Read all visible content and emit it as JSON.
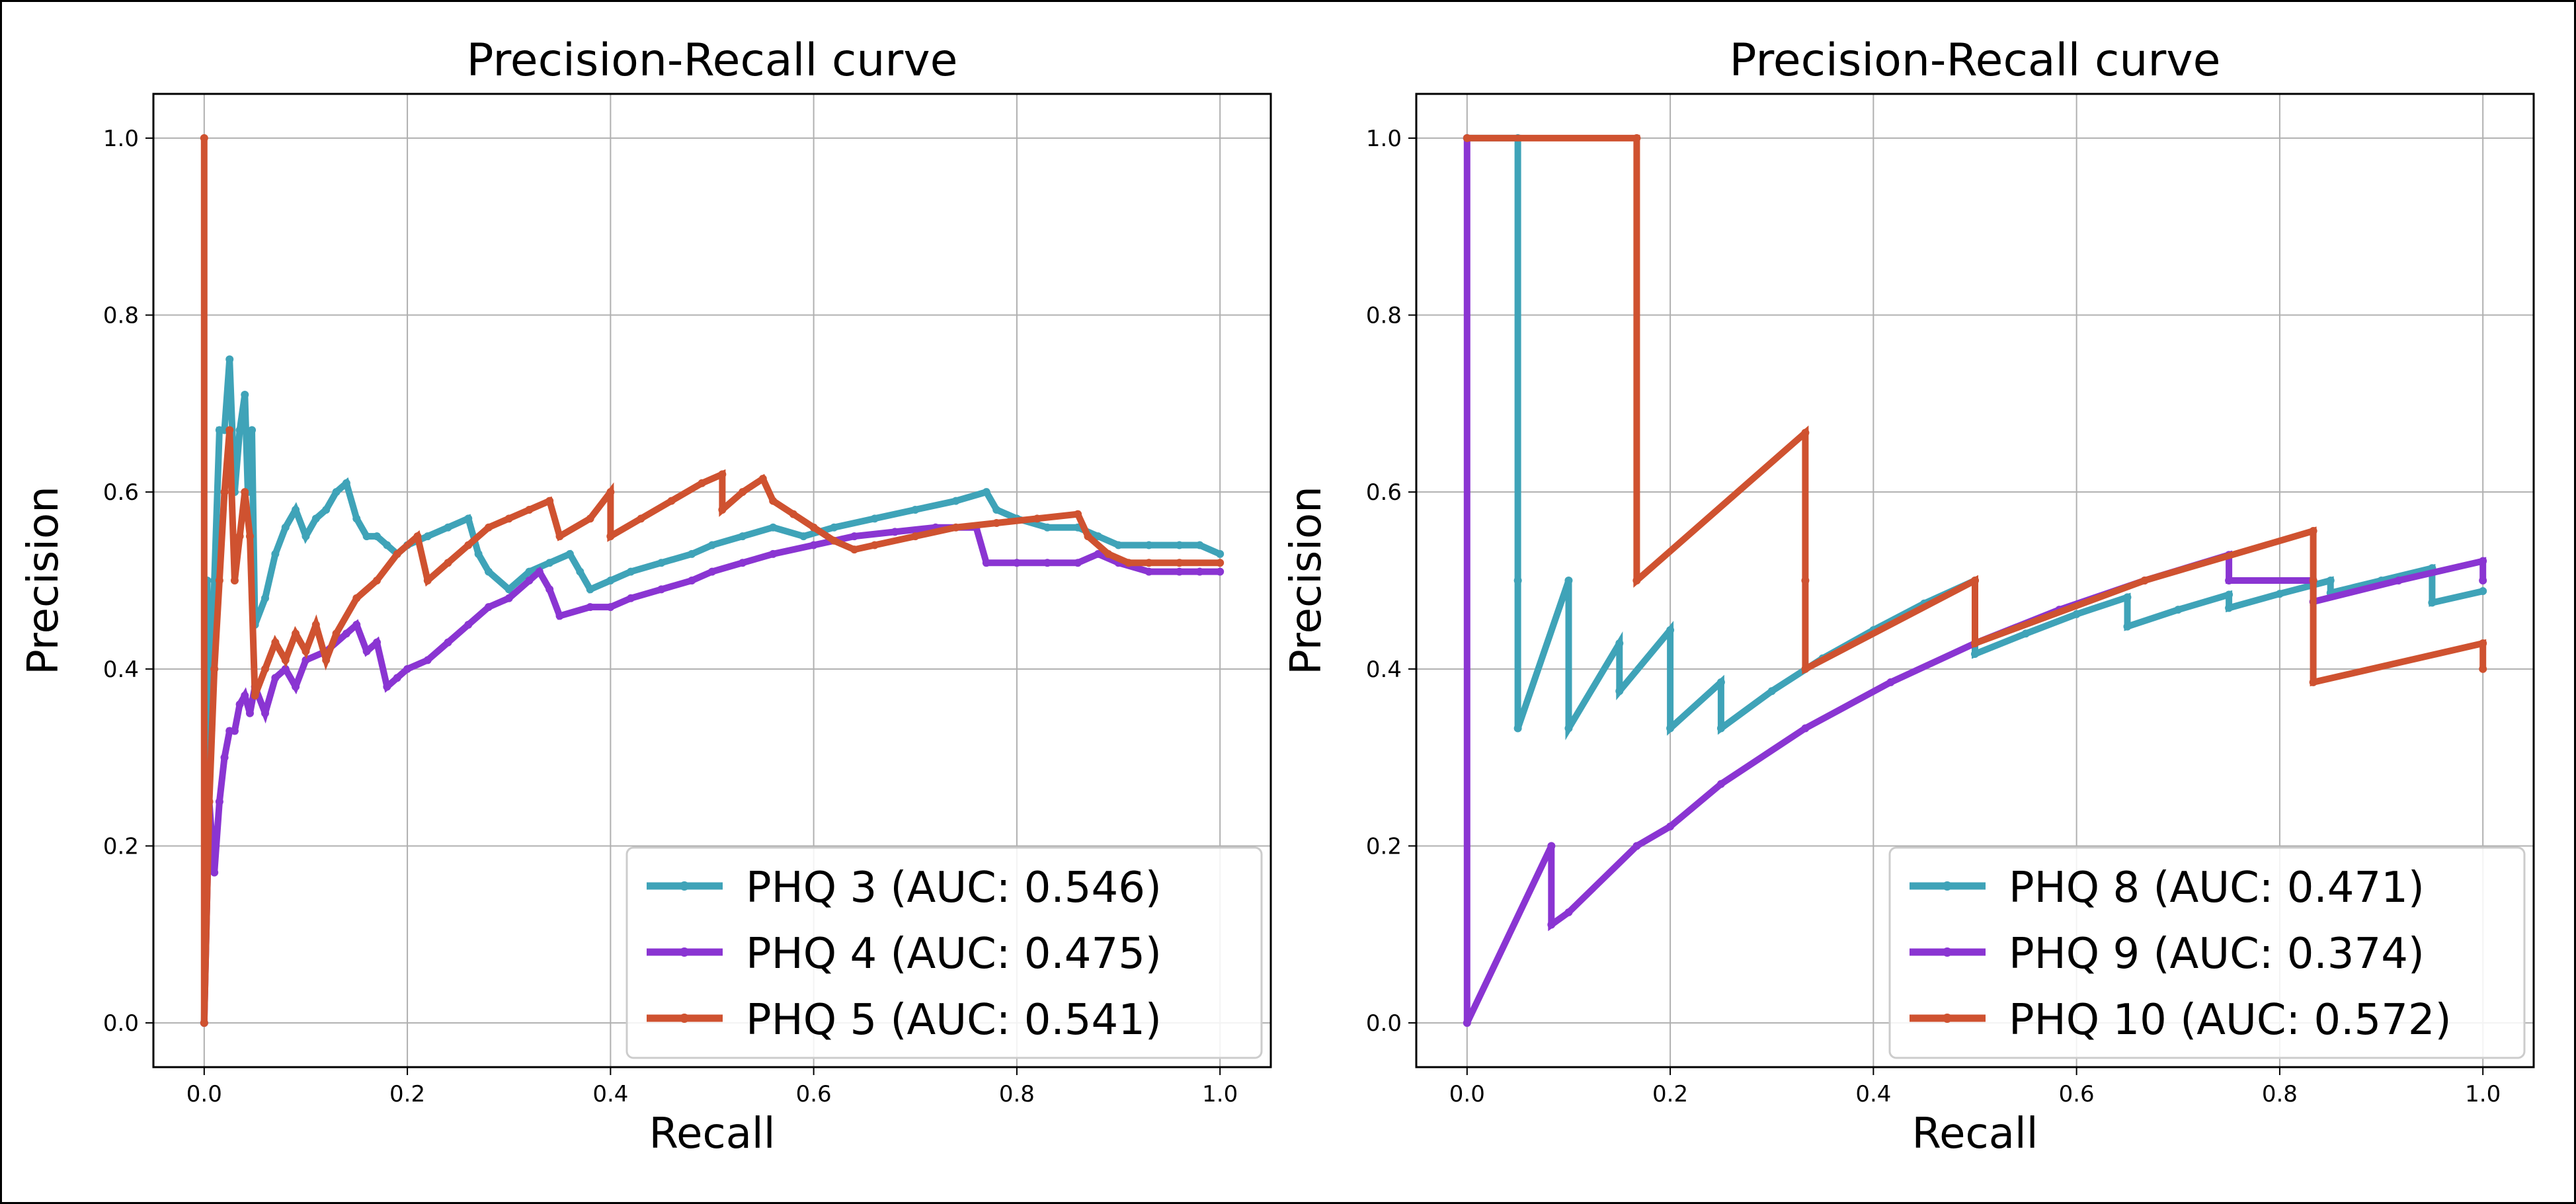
{
  "chart_data": [
    {
      "type": "line",
      "title": "Precision-Recall curve",
      "xlabel": "Recall",
      "ylabel": "Precision",
      "xlim": [
        -0.05,
        1.05
      ],
      "ylim": [
        -0.05,
        1.05
      ],
      "xticks": [
        "0.0",
        "0.2",
        "0.4",
        "0.6",
        "0.8",
        "1.0"
      ],
      "yticks": [
        "0.0",
        "0.2",
        "0.4",
        "0.6",
        "0.8",
        "1.0"
      ],
      "grid": true,
      "legend_position": "bottom-right",
      "series": [
        {
          "name": "PHQ 3 (AUC: 0.546)",
          "color": "#3fa3b8",
          "points": [
            [
              0.0,
              0.0
            ],
            [
              0.003,
              0.5
            ],
            [
              0.007,
              0.33
            ],
            [
              0.01,
              0.5
            ],
            [
              0.015,
              0.67
            ],
            [
              0.02,
              0.67
            ],
            [
              0.025,
              0.75
            ],
            [
              0.03,
              0.6
            ],
            [
              0.035,
              0.67
            ],
            [
              0.04,
              0.71
            ],
            [
              0.043,
              0.6
            ],
            [
              0.047,
              0.67
            ],
            [
              0.05,
              0.45
            ],
            [
              0.06,
              0.48
            ],
            [
              0.07,
              0.53
            ],
            [
              0.08,
              0.56
            ],
            [
              0.09,
              0.58
            ],
            [
              0.1,
              0.55
            ],
            [
              0.11,
              0.57
            ],
            [
              0.12,
              0.58
            ],
            [
              0.13,
              0.6
            ],
            [
              0.14,
              0.61
            ],
            [
              0.15,
              0.57
            ],
            [
              0.16,
              0.55
            ],
            [
              0.17,
              0.55
            ],
            [
              0.18,
              0.54
            ],
            [
              0.19,
              0.53
            ],
            [
              0.2,
              0.54
            ],
            [
              0.22,
              0.55
            ],
            [
              0.24,
              0.56
            ],
            [
              0.26,
              0.57
            ],
            [
              0.27,
              0.53
            ],
            [
              0.28,
              0.51
            ],
            [
              0.3,
              0.49
            ],
            [
              0.32,
              0.51
            ],
            [
              0.34,
              0.52
            ],
            [
              0.36,
              0.53
            ],
            [
              0.37,
              0.51
            ],
            [
              0.38,
              0.49
            ],
            [
              0.4,
              0.5
            ],
            [
              0.42,
              0.51
            ],
            [
              0.45,
              0.52
            ],
            [
              0.48,
              0.53
            ],
            [
              0.5,
              0.54
            ],
            [
              0.53,
              0.55
            ],
            [
              0.56,
              0.56
            ],
            [
              0.59,
              0.55
            ],
            [
              0.62,
              0.56
            ],
            [
              0.66,
              0.57
            ],
            [
              0.7,
              0.58
            ],
            [
              0.74,
              0.59
            ],
            [
              0.77,
              0.6
            ],
            [
              0.78,
              0.58
            ],
            [
              0.8,
              0.57
            ],
            [
              0.83,
              0.56
            ],
            [
              0.86,
              0.56
            ],
            [
              0.88,
              0.55
            ],
            [
              0.9,
              0.54
            ],
            [
              0.93,
              0.54
            ],
            [
              0.96,
              0.54
            ],
            [
              0.98,
              0.54
            ],
            [
              1.0,
              0.53
            ]
          ]
        },
        {
          "name": "PHQ 4 (AUC: 0.475)",
          "color": "#8a35d2",
          "points": [
            [
              0.0,
              0.0
            ],
            [
              0.005,
              0.25
            ],
            [
              0.01,
              0.17
            ],
            [
              0.015,
              0.25
            ],
            [
              0.02,
              0.3
            ],
            [
              0.025,
              0.33
            ],
            [
              0.03,
              0.33
            ],
            [
              0.035,
              0.36
            ],
            [
              0.04,
              0.37
            ],
            [
              0.045,
              0.35
            ],
            [
              0.05,
              0.38
            ],
            [
              0.06,
              0.35
            ],
            [
              0.07,
              0.39
            ],
            [
              0.08,
              0.4
            ],
            [
              0.09,
              0.38
            ],
            [
              0.1,
              0.41
            ],
            [
              0.12,
              0.42
            ],
            [
              0.14,
              0.44
            ],
            [
              0.15,
              0.45
            ],
            [
              0.16,
              0.42
            ],
            [
              0.17,
              0.43
            ],
            [
              0.18,
              0.38
            ],
            [
              0.19,
              0.39
            ],
            [
              0.2,
              0.4
            ],
            [
              0.22,
              0.41
            ],
            [
              0.24,
              0.43
            ],
            [
              0.26,
              0.45
            ],
            [
              0.28,
              0.47
            ],
            [
              0.3,
              0.48
            ],
            [
              0.32,
              0.5
            ],
            [
              0.33,
              0.51
            ],
            [
              0.34,
              0.49
            ],
            [
              0.35,
              0.46
            ],
            [
              0.38,
              0.47
            ],
            [
              0.4,
              0.47
            ],
            [
              0.42,
              0.48
            ],
            [
              0.45,
              0.49
            ],
            [
              0.48,
              0.5
            ],
            [
              0.5,
              0.51
            ],
            [
              0.53,
              0.52
            ],
            [
              0.56,
              0.53
            ],
            [
              0.6,
              0.54
            ],
            [
              0.64,
              0.55
            ],
            [
              0.68,
              0.555
            ],
            [
              0.72,
              0.56
            ],
            [
              0.76,
              0.56
            ],
            [
              0.77,
              0.52
            ],
            [
              0.8,
              0.52
            ],
            [
              0.83,
              0.52
            ],
            [
              0.86,
              0.52
            ],
            [
              0.88,
              0.53
            ],
            [
              0.9,
              0.52
            ],
            [
              0.93,
              0.51
            ],
            [
              0.96,
              0.51
            ],
            [
              0.98,
              0.51
            ],
            [
              1.0,
              0.51
            ]
          ]
        },
        {
          "name": "PHQ 5 (AUC: 0.541)",
          "color": "#cf5230",
          "points": [
            [
              0.0,
              1.0
            ],
            [
              0.0,
              0.0
            ],
            [
              0.005,
              0.25
            ],
            [
              0.01,
              0.4
            ],
            [
              0.015,
              0.5
            ],
            [
              0.02,
              0.6
            ],
            [
              0.025,
              0.67
            ],
            [
              0.03,
              0.5
            ],
            [
              0.035,
              0.55
            ],
            [
              0.04,
              0.6
            ],
            [
              0.045,
              0.55
            ],
            [
              0.05,
              0.37
            ],
            [
              0.06,
              0.4
            ],
            [
              0.07,
              0.43
            ],
            [
              0.08,
              0.41
            ],
            [
              0.09,
              0.44
            ],
            [
              0.1,
              0.42
            ],
            [
              0.11,
              0.45
            ],
            [
              0.12,
              0.41
            ],
            [
              0.13,
              0.44
            ],
            [
              0.15,
              0.48
            ],
            [
              0.17,
              0.5
            ],
            [
              0.19,
              0.53
            ],
            [
              0.21,
              0.55
            ],
            [
              0.22,
              0.5
            ],
            [
              0.24,
              0.52
            ],
            [
              0.26,
              0.54
            ],
            [
              0.28,
              0.56
            ],
            [
              0.3,
              0.57
            ],
            [
              0.32,
              0.58
            ],
            [
              0.34,
              0.59
            ],
            [
              0.35,
              0.55
            ],
            [
              0.38,
              0.57
            ],
            [
              0.4,
              0.6
            ],
            [
              0.4,
              0.55
            ],
            [
              0.43,
              0.57
            ],
            [
              0.46,
              0.59
            ],
            [
              0.49,
              0.61
            ],
            [
              0.51,
              0.62
            ],
            [
              0.51,
              0.58
            ],
            [
              0.53,
              0.6
            ],
            [
              0.55,
              0.615
            ],
            [
              0.56,
              0.59
            ],
            [
              0.58,
              0.575
            ],
            [
              0.6,
              0.56
            ],
            [
              0.62,
              0.545
            ],
            [
              0.64,
              0.535
            ],
            [
              0.66,
              0.54
            ],
            [
              0.7,
              0.55
            ],
            [
              0.74,
              0.56
            ],
            [
              0.78,
              0.565
            ],
            [
              0.82,
              0.57
            ],
            [
              0.86,
              0.575
            ],
            [
              0.87,
              0.55
            ],
            [
              0.89,
              0.53
            ],
            [
              0.91,
              0.52
            ],
            [
              0.93,
              0.52
            ],
            [
              0.96,
              0.52
            ],
            [
              1.0,
              0.52
            ]
          ]
        }
      ]
    },
    {
      "type": "line",
      "title": "Precision-Recall curve",
      "xlabel": "Recall",
      "ylabel": "Precision",
      "xlim": [
        -0.05,
        1.05
      ],
      "ylim": [
        -0.05,
        1.05
      ],
      "xticks": [
        "0.0",
        "0.2",
        "0.4",
        "0.6",
        "0.8",
        "1.0"
      ],
      "yticks": [
        "0.0",
        "0.2",
        "0.4",
        "0.6",
        "0.8",
        "1.0"
      ],
      "grid": true,
      "legend_position": "bottom-right",
      "series": [
        {
          "name": "PHQ 8 (AUC: 0.471)",
          "color": "#3fa3b8",
          "points": [
            [
              0.0,
              1.0
            ],
            [
              0.05,
              1.0
            ],
            [
              0.05,
              0.5
            ],
            [
              0.05,
              0.333
            ],
            [
              0.1,
              0.5
            ],
            [
              0.1,
              0.333
            ],
            [
              0.15,
              0.429
            ],
            [
              0.15,
              0.375
            ],
            [
              0.2,
              0.444
            ],
            [
              0.2,
              0.333
            ],
            [
              0.25,
              0.385
            ],
            [
              0.25,
              0.333
            ],
            [
              0.3,
              0.375
            ],
            [
              0.35,
              0.412
            ],
            [
              0.4,
              0.444
            ],
            [
              0.45,
              0.474
            ],
            [
              0.5,
              0.5
            ],
            [
              0.5,
              0.417
            ],
            [
              0.55,
              0.44
            ],
            [
              0.6,
              0.462
            ],
            [
              0.65,
              0.481
            ],
            [
              0.65,
              0.448
            ],
            [
              0.7,
              0.467
            ],
            [
              0.75,
              0.484
            ],
            [
              0.75,
              0.469
            ],
            [
              0.8,
              0.485
            ],
            [
              0.85,
              0.5
            ],
            [
              0.85,
              0.486
            ],
            [
              0.9,
              0.5
            ],
            [
              0.95,
              0.514
            ],
            [
              0.95,
              0.475
            ],
            [
              1.0,
              0.488
            ]
          ]
        },
        {
          "name": "PHQ 9 (AUC: 0.374)",
          "color": "#8a35d2",
          "points": [
            [
              0.0,
              1.0
            ],
            [
              0.0,
              0.0
            ],
            [
              0.083,
              0.2
            ],
            [
              0.083,
              0.111
            ],
            [
              0.1,
              0.125
            ],
            [
              0.167,
              0.2
            ],
            [
              0.2,
              0.222
            ],
            [
              0.25,
              0.27
            ],
            [
              0.333,
              0.333
            ],
            [
              0.417,
              0.385
            ],
            [
              0.5,
              0.429
            ],
            [
              0.583,
              0.467
            ],
            [
              0.667,
              0.5
            ],
            [
              0.75,
              0.529
            ],
            [
              0.75,
              0.5
            ],
            [
              0.833,
              0.5
            ],
            [
              0.833,
              0.476
            ],
            [
              0.917,
              0.5
            ],
            [
              1.0,
              0.522
            ],
            [
              1.0,
              0.5
            ]
          ]
        },
        {
          "name": "PHQ 10 (AUC: 0.572)",
          "color": "#cf5230",
          "points": [
            [
              0.0,
              1.0
            ],
            [
              0.167,
              1.0
            ],
            [
              0.167,
              0.5
            ],
            [
              0.333,
              0.667
            ],
            [
              0.333,
              0.5
            ],
            [
              0.333,
              0.4
            ],
            [
              0.5,
              0.5
            ],
            [
              0.5,
              0.429
            ],
            [
              0.667,
              0.5
            ],
            [
              0.833,
              0.556
            ],
            [
              0.833,
              0.5
            ],
            [
              0.833,
              0.385
            ],
            [
              1.0,
              0.429
            ],
            [
              1.0,
              0.4
            ]
          ]
        }
      ]
    }
  ]
}
